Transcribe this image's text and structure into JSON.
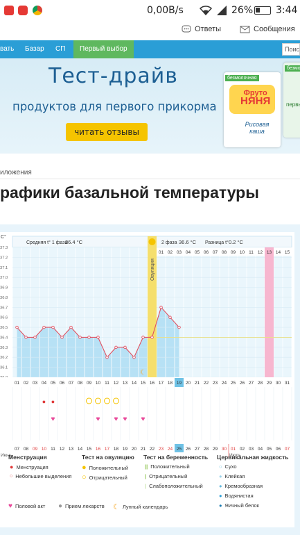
{
  "statusbar": {
    "speed": "0,00B/s",
    "battery": "26%",
    "time": "3:44"
  },
  "topnav": {
    "answers": "Ответы",
    "messages": "Сообщения"
  },
  "menubar": {
    "items": [
      "вать",
      "Базар",
      "СП"
    ],
    "active": "Первый выбор",
    "search_placeholder": "Поиск"
  },
  "banner": {
    "title": "Тест-драйв",
    "subtitle": "продуктов для первого прикорма",
    "button": "читать отзывы",
    "pkg_tag": "безмолочная",
    "brand_top": "Фруто",
    "brand_bottom": "НЯНЯ",
    "product1": "Рисовая каша",
    "product_tag2": "первый выбор"
  },
  "breadcrumb": "иложения",
  "page_title": "рафики базальной температуры",
  "chart_data": {
    "type": "line",
    "unit_label": "С°",
    "phase1": {
      "label": "Средняя t° 1 фаза",
      "value": "36.4 °С"
    },
    "phase2": {
      "label": "2 фаза",
      "value": "36.6 °С"
    },
    "difference": {
      "label": "Разница t°",
      "value": "0.2 °С"
    },
    "ovulation_label": "Овуляция",
    "ylim": [
      36.0,
      37.3
    ],
    "y_ticks": [
      "37.3",
      "37.2",
      "37.1",
      "37.0",
      "36.9",
      "36.8",
      "36.7",
      "36.6",
      "36.5",
      "36.4",
      "36.3",
      "36.2",
      "36.1",
      "36.0"
    ],
    "cycle_days": [
      "01",
      "02",
      "03",
      "04",
      "05",
      "06",
      "07",
      "08",
      "09",
      "10",
      "11",
      "12",
      "13",
      "14",
      "15",
      "16",
      "17",
      "18",
      "19",
      "20",
      "21",
      "22",
      "23",
      "24",
      "25",
      "26",
      "27",
      "28",
      "29",
      "30",
      "31"
    ],
    "phase2_days": [
      "01",
      "02",
      "03",
      "04",
      "05",
      "06",
      "07",
      "08",
      "09",
      "10",
      "11",
      "12",
      "13",
      "14",
      "15"
    ],
    "temperatures": [
      36.5,
      36.4,
      36.4,
      36.5,
      36.5,
      36.4,
      36.5,
      36.4,
      36.4,
      36.4,
      36.2,
      36.3,
      36.3,
      36.2,
      36.4,
      36.4,
      36.7,
      36.6,
      36.5
    ],
    "coverline": 36.4,
    "current_day": "19",
    "ovulation_day": 16,
    "highlight_day_phase2": "13",
    "menstruation_days": [
      4,
      5
    ],
    "ovulation_test_negative_days": [
      9,
      10,
      11,
      12
    ],
    "intercourse_days": [
      5,
      10,
      12,
      13,
      15
    ],
    "lunar_day": 15,
    "calendar_dates": [
      "07",
      "08",
      "09",
      "10",
      "11",
      "12",
      "13",
      "14",
      "15",
      "16",
      "17",
      "18",
      "19",
      "20",
      "21",
      "22",
      "23",
      "24",
      "25",
      "26",
      "27",
      "28",
      "29",
      "30",
      "01",
      "02",
      "03",
      "04",
      "05",
      "06",
      "07"
    ],
    "month_june": "Июнь",
    "month_july": "Июль",
    "calendar_red_dates": [
      "09",
      "10",
      "16",
      "17",
      "23",
      "24",
      "30",
      "01",
      "07"
    ],
    "calendar_today": "25"
  },
  "legend": {
    "menstruation": {
      "title": "Менструация",
      "items": [
        "Менструация",
        "Небольшие выделения"
      ]
    },
    "ovulation_test": {
      "title": "Тест на овуляцию",
      "items": [
        "Положительный",
        "Отрицательный"
      ]
    },
    "pregnancy_test": {
      "title": "Тест на беременность",
      "items": [
        "Положительный",
        "Отрицательный",
        "Слабоположительный"
      ]
    },
    "cervical": {
      "title": "Цервикальная жидкость",
      "items": [
        "Сухо",
        "Клейкая",
        "Кремообразная",
        "Водянистая",
        "Яичный белок"
      ]
    },
    "bottom": [
      "Половой акт",
      "Прием лекарств",
      "Лунный календарь"
    ]
  },
  "colors": {
    "blue": "#2a9ed6",
    "green": "#5fb85f",
    "red": "#e03a3a",
    "pink": "#f5a3c3",
    "ovulation": "#f5df6c",
    "plot_fill": "#b7e1f5",
    "line": "#e05060"
  }
}
